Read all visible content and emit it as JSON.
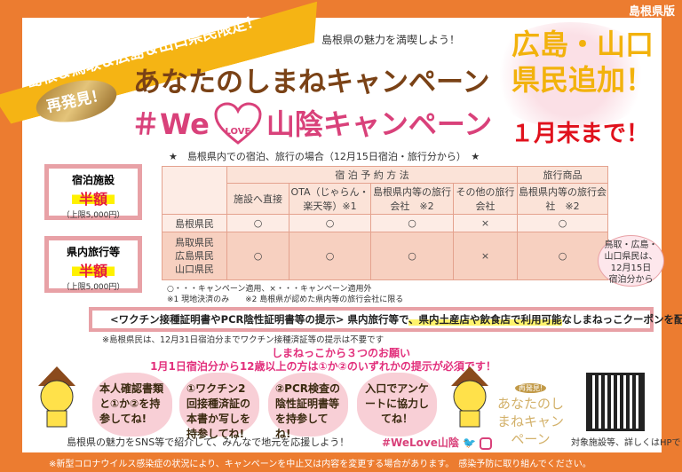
{
  "edition": "島根県版",
  "banner": "島根＆鳥取＆広島＆山口県民限定！",
  "tagline": "島根県の魅力を満喫しよう！",
  "badge": "再発見！",
  "title1": "あなたのしまねキャンペーン",
  "title2_prefix": "＃We",
  "title2_heart": "LOVE",
  "title2_suffix": "山陰キャンペーン",
  "added_line1": "広島・山口",
  "added_line2": "県民追加！",
  "deadline": "１月末まで！",
  "table_caption": "★　島根県内での宿泊、旅行の場合（12月15日宿泊・旅行分から）　★",
  "table": {
    "group_headers": [
      "宿 泊 予 約 方 法",
      "旅行商品"
    ],
    "columns": [
      "施設へ直接",
      "OTA（じゃらん・楽天等）※1",
      "島根県内等の旅行会社　※2",
      "その他の旅行会社",
      "島根県内等の旅行会社　※2"
    ],
    "rows": [
      {
        "label": "島根県民",
        "values": [
          "○",
          "○",
          "○",
          "×",
          "○"
        ]
      },
      {
        "label": "鳥取県民\n広島県民\n山口県民",
        "values": [
          "○",
          "○",
          "○",
          "×",
          "○"
        ]
      }
    ]
  },
  "notes": [
    "○・・・キャンペーン適用、×・・・キャンペーン適用外",
    "※1 現地決済のみ　　※2 島根県が認めた県内等の旅行会社に限る"
  ],
  "discounts": [
    {
      "title": "宿泊施設",
      "value": "半額",
      "limit": "（上限5,000円）"
    },
    {
      "title": "県内旅行等",
      "value": "半額",
      "limit": "（上限5,000円）"
    }
  ],
  "bubble": "鳥取・広島・\n山口県民は、\n12月15日\n宿泊分から",
  "coupon": {
    "part1": "<ワクチン接種証明書やPCR陰性証明書等の提示> 県内旅行等で",
    "part2": "、県内土産店や飲食店で利用可能",
    "part3": "なしまねっこクーポンを配布"
  },
  "note2": "※島根県民は、12月31日宿泊分までワクチン接種済証等の提示は不要です",
  "request_title": "しまねっこから３つのお願い",
  "request_sub": "1月1日宿泊分から12歳以上の方は①か②のいずれかの提示が必須です！",
  "clouds": [
    "本人確認書類と①か②を持参してね!",
    "①ワクチン2回接種済証の本書か写しを持参してね!",
    "②PCR検査の陰性証明書等を持参してね!",
    "入口でアンケートに協力してね！"
  ],
  "sns": "島根県の魅力をSNS等で紹介して、みんなで地元を応援しよう！",
  "hashtag": "#WeLove山陰",
  "logo": {
    "badge": "再発見!",
    "text": "あなたのしまねキャンペーン"
  },
  "hp": "対象施設等、詳しくはHPで！",
  "footer": "※新型コロナウイルス感染症の状況により、キャンペーンを中止又は内容を変更する場合があります。　感染予防に取り組んでください。",
  "colors": {
    "orange": "#ec7c30",
    "pink": "#d9417a",
    "yellow": "#f5b414",
    "red": "#e0111c",
    "brown": "#7a4216"
  }
}
